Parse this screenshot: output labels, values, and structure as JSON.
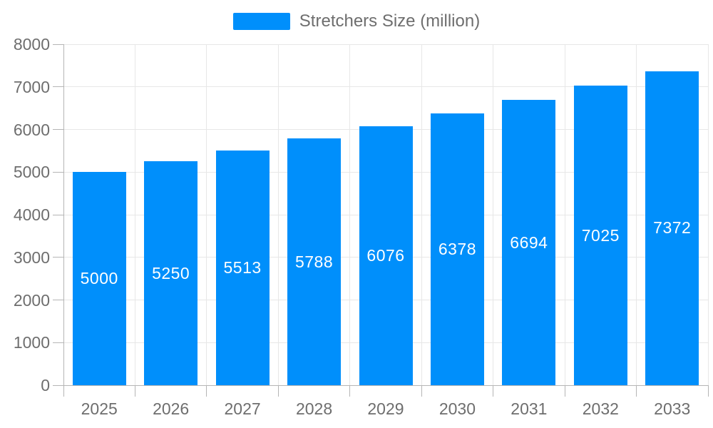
{
  "legend": {
    "label": "Stretchers Size (million)"
  },
  "colors": {
    "bar": "#008FFB",
    "grid": "#e7e7e7",
    "axis": "#b5b5b5",
    "axis_label": "#6e6e6e",
    "legend_label": "#6e6e6e",
    "value_label": "#ffffff",
    "background": "#ffffff"
  },
  "chart_data": {
    "type": "bar",
    "title": "Stretchers Size (million)",
    "categories": [
      "2025",
      "2026",
      "2027",
      "2028",
      "2029",
      "2030",
      "2031",
      "2032",
      "2033"
    ],
    "series": [
      {
        "name": "Stretchers Size (million)",
        "values": [
          5000,
          5250,
          5513,
          5788,
          6076,
          6378,
          6694,
          7025,
          7372
        ]
      }
    ],
    "xlabel": "",
    "ylabel": "",
    "ylim": [
      0,
      8000
    ],
    "ytick_step": 1000,
    "yticks": [
      0,
      1000,
      2000,
      3000,
      4000,
      5000,
      6000,
      7000,
      8000
    ],
    "grid": true,
    "legend_position": "top",
    "bar_labels_inside": true
  }
}
